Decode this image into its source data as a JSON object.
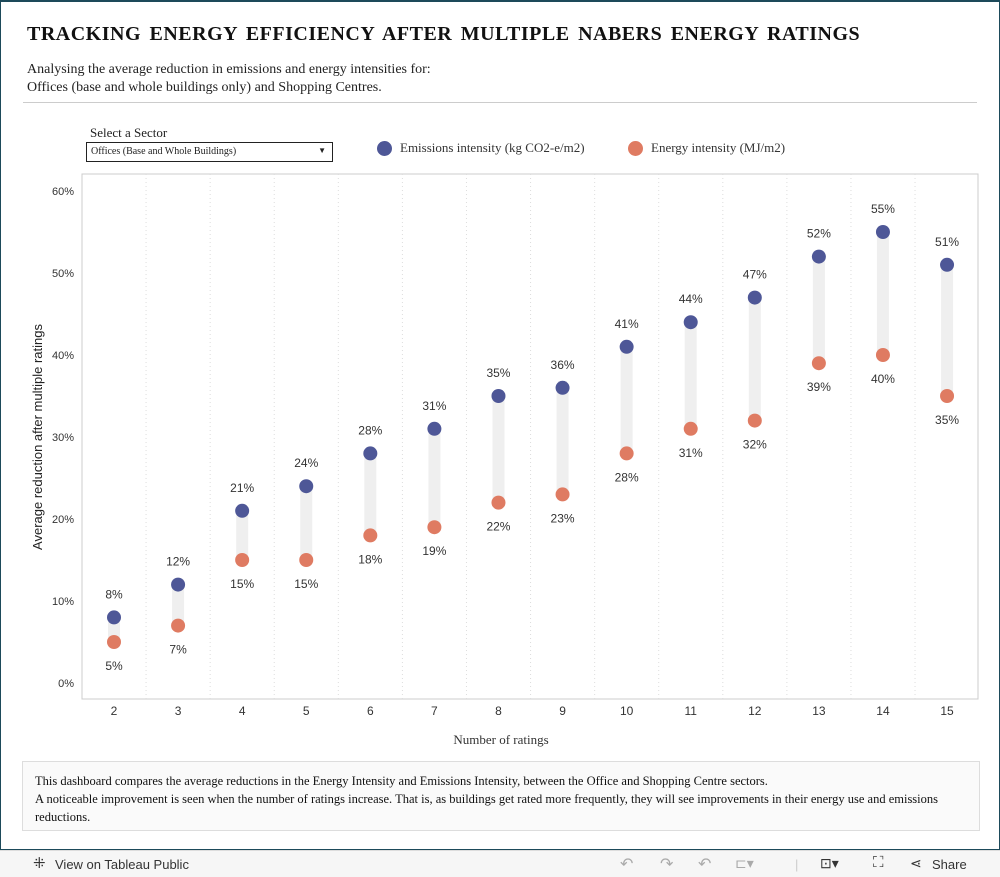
{
  "header": {
    "title": "TRACKING ENERGY EFFICIENCY AFTER MULTIPLE NABERS ENERGY RATINGS",
    "subtitle_line1": "Analysing the average reduction in emissions and energy intensities for:",
    "subtitle_line2": "Offices (base and whole buildings only) and Shopping Centres."
  },
  "filter": {
    "label": "Select a Sector",
    "value": "Offices (Base and Whole Buildings)"
  },
  "colors": {
    "emissions": "#4e5797",
    "energy": "#df7b62",
    "bar": "#efefef"
  },
  "chart_data": {
    "type": "scatter",
    "xlabel": "Number of ratings",
    "ylabel": "Average reduction after multiple ratings",
    "categories": [
      "2",
      "3",
      "4",
      "5",
      "6",
      "7",
      "8",
      "9",
      "10",
      "11",
      "12",
      "13",
      "14",
      "15"
    ],
    "ylim": [
      0,
      60
    ],
    "yticks": [
      "0%",
      "10%",
      "20%",
      "30%",
      "40%",
      "50%",
      "60%"
    ],
    "legend_position": "top",
    "series": [
      {
        "name": "Emissions intensity (kg CO2-e/m2)",
        "values": [
          8,
          12,
          21,
          24,
          28,
          31,
          35,
          36,
          41,
          44,
          47,
          52,
          55,
          51
        ]
      },
      {
        "name": "Energy intensity (MJ/m2)",
        "values": [
          5,
          7,
          15,
          15,
          18,
          19,
          22,
          23,
          28,
          31,
          32,
          39,
          40,
          35
        ]
      }
    ]
  },
  "note": {
    "line1": "This dashboard compares the average reductions in the Energy Intensity and Emissions Intensity, between the Office and Shopping Centre sectors.",
    "line2": "A noticeable improvement is seen when the number of ratings increase. That is, as buildings get rated more frequently, they will see improvements in their energy use and emissions reductions."
  },
  "footer": {
    "view": "View on Tableau Public",
    "share": "Share"
  }
}
